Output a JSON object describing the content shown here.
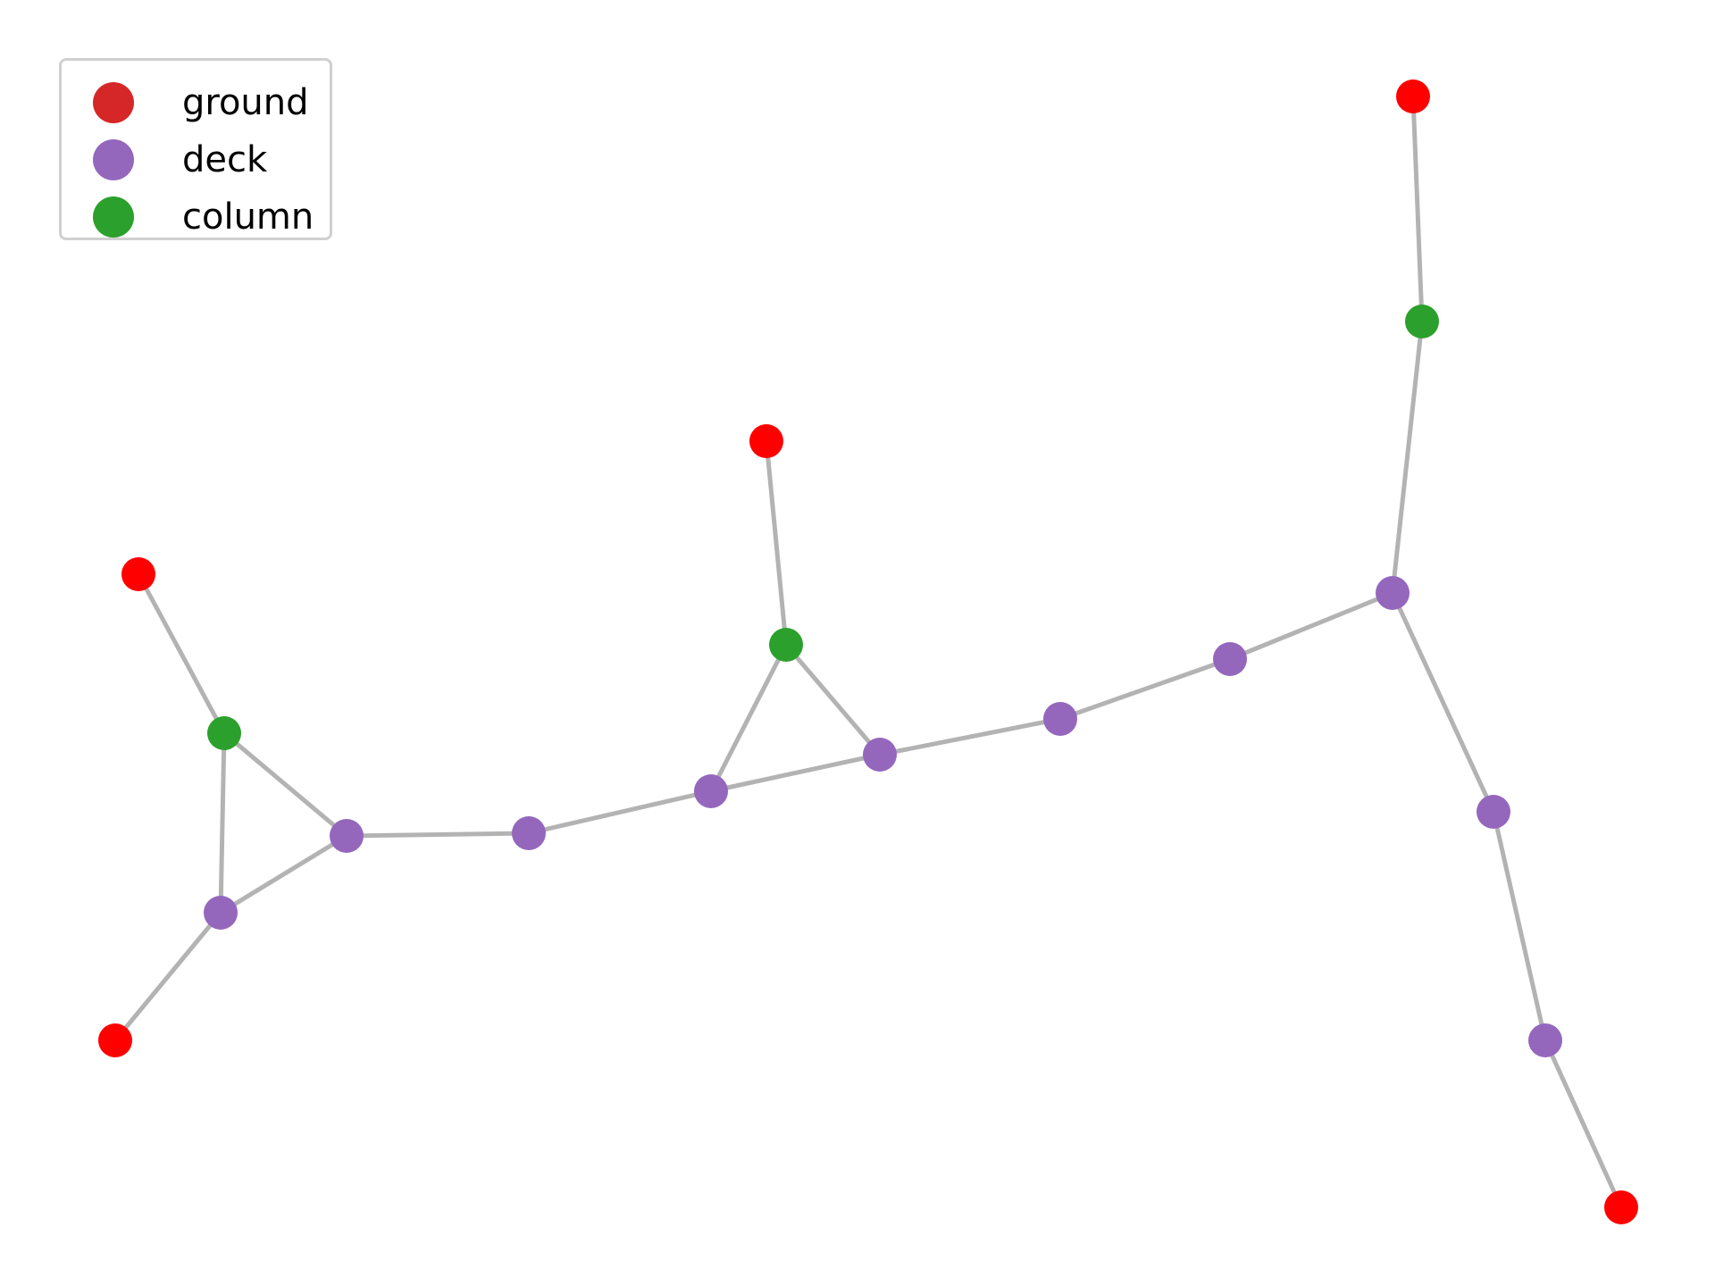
{
  "legend": {
    "items": [
      {
        "label": "ground",
        "color": "#d62728"
      },
      {
        "label": "deck",
        "color": "#9467bd"
      },
      {
        "label": "column",
        "color": "#2ca02c"
      }
    ]
  },
  "colors": {
    "ground_node": "#ff0000",
    "deck_node": "#9467bd",
    "column_node": "#2ca02c",
    "edge": "#b3b3b3"
  },
  "graph": {
    "node_types": [
      "ground",
      "deck",
      "column"
    ],
    "nodes": [
      {
        "id": "g1",
        "type": "ground"
      },
      {
        "id": "g2",
        "type": "ground"
      },
      {
        "id": "g3",
        "type": "ground"
      },
      {
        "id": "g4",
        "type": "ground"
      },
      {
        "id": "g5",
        "type": "ground"
      },
      {
        "id": "c1",
        "type": "column"
      },
      {
        "id": "c2",
        "type": "column"
      },
      {
        "id": "c3",
        "type": "column"
      },
      {
        "id": "d1",
        "type": "deck"
      },
      {
        "id": "d2",
        "type": "deck"
      },
      {
        "id": "d3",
        "type": "deck"
      },
      {
        "id": "d4",
        "type": "deck"
      },
      {
        "id": "d5",
        "type": "deck"
      },
      {
        "id": "d6",
        "type": "deck"
      },
      {
        "id": "d7",
        "type": "deck"
      },
      {
        "id": "d8",
        "type": "deck"
      },
      {
        "id": "d9",
        "type": "deck"
      },
      {
        "id": "d10",
        "type": "deck"
      },
      {
        "id": "d11",
        "type": "deck"
      }
    ],
    "edges": [
      [
        "g1",
        "c1"
      ],
      [
        "c1",
        "d2"
      ],
      [
        "c1",
        "d1"
      ],
      [
        "d1",
        "d2"
      ],
      [
        "d1",
        "g2"
      ],
      [
        "d2",
        "d3"
      ],
      [
        "d3",
        "d4"
      ],
      [
        "d4",
        "c2"
      ],
      [
        "c2",
        "g3"
      ],
      [
        "c2",
        "d5"
      ],
      [
        "d4",
        "d5"
      ],
      [
        "d5",
        "d6"
      ],
      [
        "d6",
        "d7"
      ],
      [
        "d7",
        "d8"
      ],
      [
        "d8",
        "c3"
      ],
      [
        "c3",
        "g4"
      ],
      [
        "d8",
        "d9"
      ],
      [
        "d9",
        "d10"
      ],
      [
        "d10",
        "g5"
      ]
    ]
  }
}
